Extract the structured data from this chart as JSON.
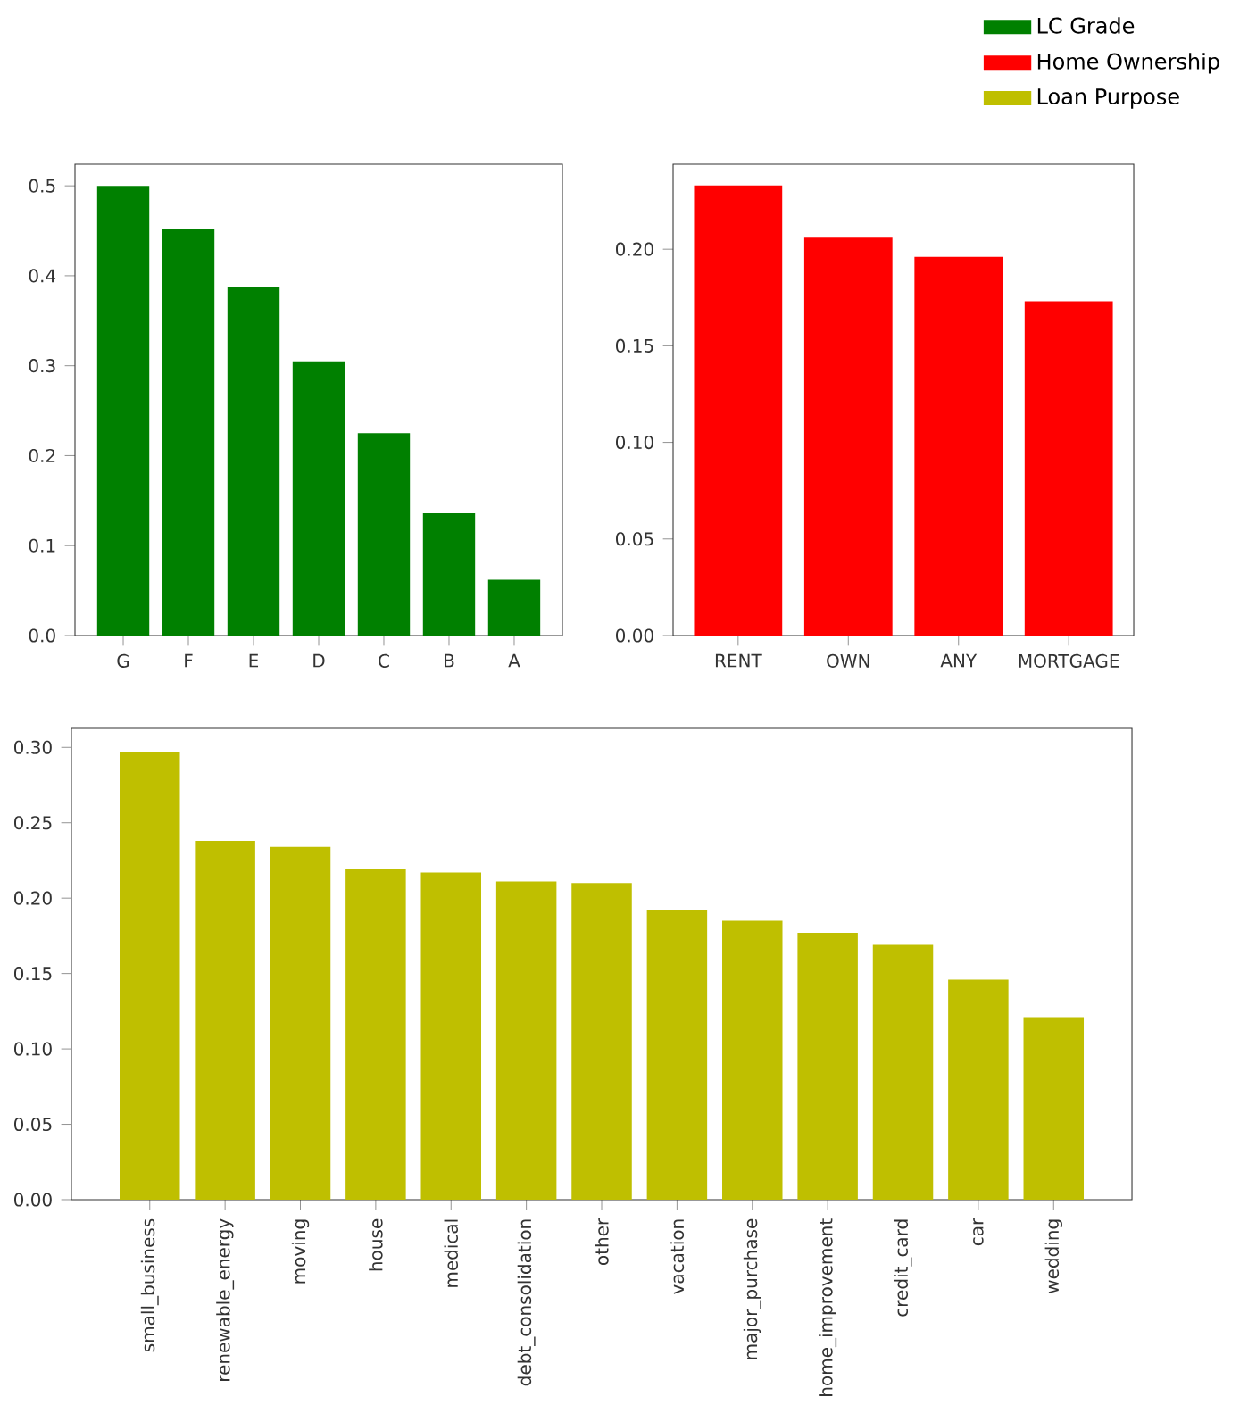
{
  "chart_data": [
    {
      "type": "bar",
      "categories": [
        "G",
        "F",
        "E",
        "D",
        "C",
        "B",
        "A"
      ],
      "series": [
        {
          "name": "LC Grade",
          "color": "#008000",
          "values": [
            0.5,
            0.452,
            0.387,
            0.305,
            0.225,
            0.136,
            0.062
          ]
        }
      ],
      "ylim": [
        0,
        0.524
      ],
      "yticks": [
        {
          "value": 0,
          "label": "0.0"
        },
        0.1,
        0.2,
        0.3,
        0.4,
        0.5
      ],
      "legend": "top right",
      "grid": false
    },
    {
      "type": "bar",
      "categories": [
        "RENT",
        "OWN",
        "ANY",
        "MORTGAGE"
      ],
      "series": [
        {
          "name": "Home Ownership",
          "color": "#ff0000",
          "values": [
            0.233,
            0.206,
            0.196,
            0.173
          ]
        }
      ],
      "ylim": [
        0,
        0.244
      ],
      "yticks": [
        {
          "value": 0,
          "label": "0.00"
        },
        {
          "value": 0.05,
          "label": "0.05"
        },
        {
          "value": 0.1,
          "label": "0.10"
        },
        {
          "value": 0.15,
          "label": "0.15"
        },
        {
          "value": 0.2,
          "label": "0.20"
        }
      ],
      "legend": "top right",
      "grid": false
    },
    {
      "type": "bar",
      "categories": [
        "small_business",
        "renewable_energy",
        "moving",
        "house",
        "medical",
        "debt_consolidation",
        "other",
        "vacation",
        "major_purchase",
        "home_improvement",
        "credit_card",
        "car",
        "wedding"
      ],
      "series": [
        {
          "name": "Loan Purpose",
          "color": "#bfbf00",
          "values": [
            0.297,
            0.238,
            0.234,
            0.219,
            0.217,
            0.211,
            0.21,
            0.192,
            0.185,
            0.177,
            0.169,
            0.146,
            0.121
          ]
        }
      ],
      "ylim": [
        0,
        0.3126
      ],
      "yticks": [
        {
          "value": 0,
          "label": "0.00"
        },
        {
          "value": 0.05,
          "label": "0.05"
        },
        {
          "value": 0.1,
          "label": "0.10"
        },
        {
          "value": 0.15,
          "label": "0.15"
        },
        {
          "value": 0.2,
          "label": "0.20"
        },
        {
          "value": 0.25,
          "label": "0.25"
        },
        {
          "value": 0.3,
          "label": "0.30"
        }
      ],
      "legend": "top right",
      "grid": false
    }
  ]
}
